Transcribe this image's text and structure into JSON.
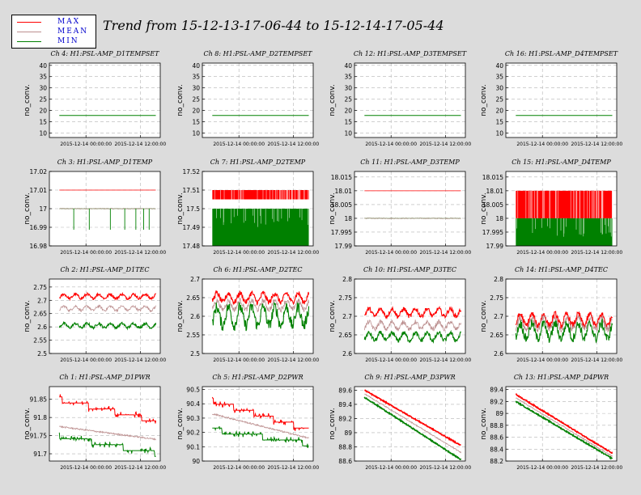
{
  "title": "Trend from 15-12-13-17-06-44 to 15-12-14-17-05-44",
  "legend": [
    {
      "label": "MAX",
      "color": "#ff0000"
    },
    {
      "label": "MEAN",
      "color": "#bc8f8f"
    },
    {
      "label": "MIN",
      "color": "#008000"
    }
  ],
  "xticks": [
    "2015-12-14 00:00:00",
    "2015-12-14 12:00:00"
  ],
  "ylabel": "no_conv.",
  "chart_data": [
    {
      "title": "Ch 4: H1:PSL-AMP_D1TEMPSET",
      "type": "line",
      "yticks": [
        "10",
        "15",
        "20",
        "25",
        "30",
        "35",
        "40"
      ],
      "ylim": [
        8,
        41
      ],
      "mode": "flat",
      "series": [
        {
          "name": "MIN",
          "value": 17.8
        }
      ]
    },
    {
      "title": "Ch 8: H1:PSL-AMP_D2TEMPSET",
      "type": "line",
      "yticks": [
        "10",
        "15",
        "20",
        "25",
        "30",
        "35",
        "40"
      ],
      "ylim": [
        8,
        41
      ],
      "mode": "flat",
      "series": [
        {
          "name": "MIN",
          "value": 17.8
        }
      ]
    },
    {
      "title": "Ch 12: H1:PSL-AMP_D3TEMPSET",
      "type": "line",
      "yticks": [
        "10",
        "15",
        "20",
        "25",
        "30",
        "35",
        "40"
      ],
      "ylim": [
        8,
        41
      ],
      "mode": "flat",
      "series": [
        {
          "name": "MIN",
          "value": 17.8
        }
      ]
    },
    {
      "title": "Ch 16: H1:PSL-AMP_D4TEMPSET",
      "type": "line",
      "yticks": [
        "10",
        "15",
        "20",
        "25",
        "30",
        "35",
        "40"
      ],
      "ylim": [
        8,
        41
      ],
      "mode": "flat",
      "series": [
        {
          "name": "MIN",
          "value": 17.8
        }
      ]
    },
    {
      "title": "Ch 3: H1:PSL-AMP_D1TEMP",
      "type": "line",
      "yticks": [
        "16.98",
        "16.99",
        "17",
        "17.01",
        "17.02"
      ],
      "ylim": [
        16.98,
        17.02
      ],
      "mode": "temp1",
      "series": [
        {
          "name": "MAX",
          "value": 17.01
        },
        {
          "name": "MEAN",
          "value": 17.0
        },
        {
          "name": "MIN",
          "value": 17.0
        }
      ]
    },
    {
      "title": "Ch 7: H1:PSL-AMP_D2TEMP",
      "type": "line",
      "yticks": [
        "17.48",
        "17.49",
        "17.5",
        "17.51",
        "17.52"
      ],
      "ylim": [
        17.48,
        17.52
      ],
      "mode": "band",
      "series": [
        {
          "name": "MAX",
          "low": 17.505,
          "high": 17.51
        },
        {
          "name": "MIN",
          "low": 17.48,
          "high": 17.5
        }
      ]
    },
    {
      "title": "Ch 11: H1:PSL-AMP_D3TEMP",
      "type": "line",
      "yticks": [
        "17.99",
        "17.995",
        "18",
        "18.005",
        "18.01",
        "18.015"
      ],
      "ylim": [
        17.99,
        18.017
      ],
      "mode": "temp3",
      "series": [
        {
          "name": "MAX",
          "value": 18.01
        },
        {
          "name": "MEAN",
          "value": 18.0
        },
        {
          "name": "MIN",
          "value": 18.0
        }
      ]
    },
    {
      "title": "Ch 15: H1:PSL-AMP_D4TEMP",
      "type": "line",
      "yticks": [
        "17.99",
        "17.995",
        "18",
        "18.005",
        "18.01",
        "18.015"
      ],
      "ylim": [
        17.99,
        18.017
      ],
      "mode": "band",
      "series": [
        {
          "name": "MAX",
          "low": 18.0,
          "high": 18.01
        },
        {
          "name": "MIN",
          "low": 17.99,
          "high": 18.0
        }
      ]
    },
    {
      "title": "Ch 2: H1:PSL-AMP_D1TEC",
      "type": "line",
      "yticks": [
        "2.5",
        "2.55",
        "2.6",
        "2.65",
        "2.7",
        "2.75"
      ],
      "ylim": [
        2.5,
        2.78
      ],
      "mode": "tec",
      "series": [
        {
          "name": "MAX",
          "value": 2.715,
          "amp": 0.008
        },
        {
          "name": "MEAN",
          "value": 2.67,
          "amp": 0.008
        },
        {
          "name": "MIN",
          "value": 2.605,
          "amp": 0.008
        }
      ]
    },
    {
      "title": "Ch 6: H1:PSL-AMP_D2TEC",
      "type": "line",
      "yticks": [
        "2.5",
        "2.55",
        "2.6",
        "2.65",
        "2.7"
      ],
      "ylim": [
        2.5,
        2.7
      ],
      "mode": "tec",
      "series": [
        {
          "name": "MAX",
          "value": 2.65,
          "amp": 0.012
        },
        {
          "name": "MEAN",
          "value": 2.63,
          "amp": 0.012
        },
        {
          "name": "MIN",
          "value": 2.6,
          "amp": 0.025
        }
      ]
    },
    {
      "title": "Ch 10: H1:PSL-AMP_D3TEC",
      "type": "line",
      "yticks": [
        "2.6",
        "2.65",
        "2.7",
        "2.75",
        "2.8"
      ],
      "ylim": [
        2.6,
        2.8
      ],
      "mode": "tec",
      "series": [
        {
          "name": "MAX",
          "value": 2.71,
          "amp": 0.01
        },
        {
          "name": "MEAN",
          "value": 2.675,
          "amp": 0.01
        },
        {
          "name": "MIN",
          "value": 2.645,
          "amp": 0.01
        }
      ]
    },
    {
      "title": "Ch 14: H1:PSL-AMP_D4TEC",
      "type": "line",
      "yticks": [
        "2.6",
        "2.65",
        "2.7",
        "2.75",
        "2.8"
      ],
      "ylim": [
        2.6,
        2.8
      ],
      "mode": "tec",
      "series": [
        {
          "name": "MAX",
          "value": 2.69,
          "amp": 0.015
        },
        {
          "name": "MEAN",
          "value": 2.68,
          "amp": 0.015
        },
        {
          "name": "MIN",
          "value": 2.66,
          "amp": 0.02
        }
      ]
    },
    {
      "title": "Ch 1: H1:PSL-AMP_D1PWR",
      "type": "line",
      "yticks": [
        "91.7",
        "91.75",
        "91.8",
        "91.85"
      ],
      "ylim": [
        91.68,
        91.885
      ],
      "mode": "pwrflat",
      "series": [
        {
          "name": "MAX",
          "start": 91.85,
          "end": 91.79
        },
        {
          "name": "MEAN",
          "start": 91.775,
          "end": 91.74
        },
        {
          "name": "MIN",
          "start": 91.75,
          "end": 91.7
        }
      ]
    },
    {
      "title": "Ch 5: H1:PSL-AMP_D2PWR",
      "type": "line",
      "yticks": [
        "90",
        "90.1",
        "90.2",
        "90.3",
        "90.4",
        "90.5"
      ],
      "ylim": [
        90.0,
        90.52
      ],
      "mode": "pwrflat",
      "series": [
        {
          "name": "MAX",
          "start": 90.42,
          "end": 90.22
        },
        {
          "name": "MEAN",
          "start": 90.33,
          "end": 90.16
        },
        {
          "name": "MIN",
          "start": 90.22,
          "end": 90.12
        }
      ]
    },
    {
      "title": "Ch 9: H1:PSL-AMP_D3PWR",
      "type": "line",
      "yticks": [
        "88.6",
        "88.8",
        "89",
        "89.2",
        "89.4",
        "89.6"
      ],
      "ylim": [
        88.6,
        89.65
      ],
      "mode": "pwrline",
      "series": [
        {
          "name": "MAX",
          "start": 89.6,
          "end": 88.82
        },
        {
          "name": "MEAN",
          "start": 89.55,
          "end": 88.72
        },
        {
          "name": "MIN",
          "start": 89.5,
          "end": 88.62
        }
      ]
    },
    {
      "title": "Ch 13: H1:PSL-AMP_D4PWR",
      "type": "line",
      "yticks": [
        "88.2",
        "88.4",
        "88.6",
        "88.8",
        "89",
        "89.2",
        "89.4"
      ],
      "ylim": [
        88.2,
        89.45
      ],
      "mode": "pwrline",
      "series": [
        {
          "name": "MAX",
          "start": 89.32,
          "end": 88.33
        },
        {
          "name": "MEAN",
          "start": 89.26,
          "end": 88.28
        },
        {
          "name": "MIN",
          "start": 89.2,
          "end": 88.24
        }
      ]
    }
  ]
}
